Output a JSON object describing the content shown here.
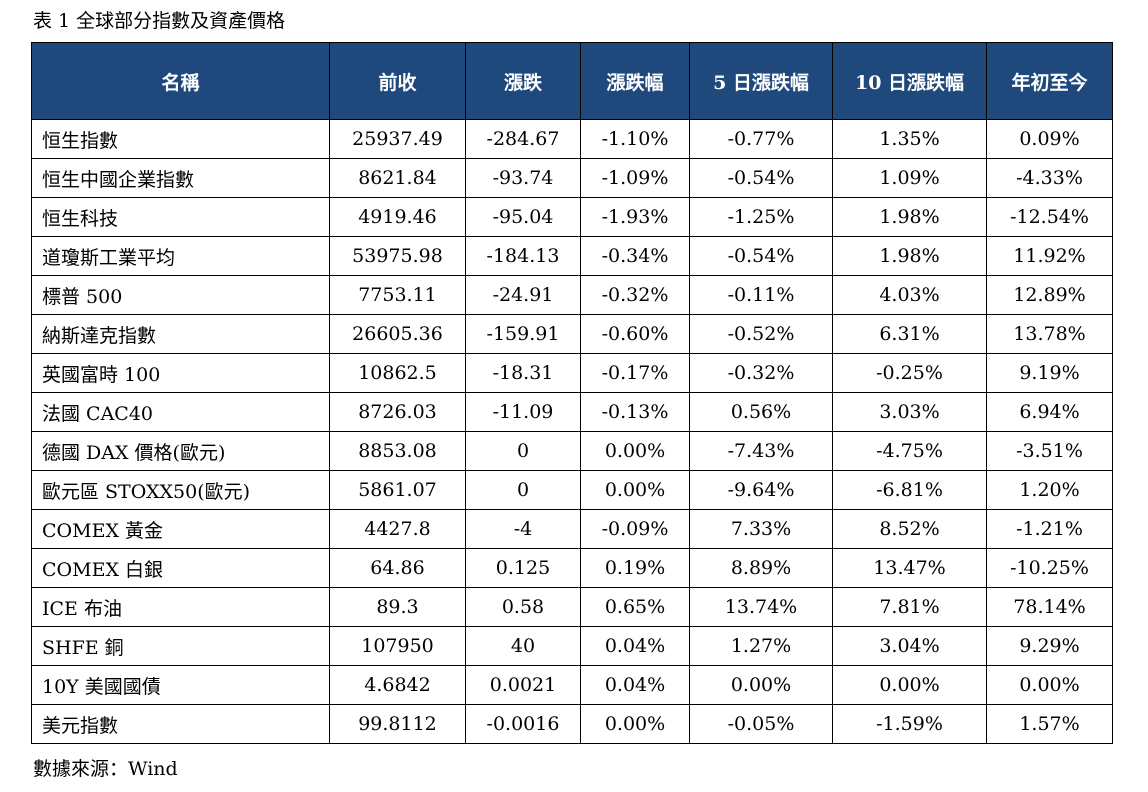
{
  "caption": "表 1 全球部分指數及資產價格",
  "source": "數據來源：Wind",
  "table": {
    "headers": [
      "名稱",
      "前收",
      "漲跌",
      "漲跌幅",
      "5 日漲跌幅",
      "10 日漲跌幅",
      "年初至今"
    ],
    "rows": [
      [
        "恒生指數",
        "25937.49",
        "-284.67",
        "-1.10%",
        "-0.77%",
        "1.35%",
        "0.09%"
      ],
      [
        "恒生中國企業指數",
        "8621.84",
        "-93.74",
        "-1.09%",
        "-0.54%",
        "1.09%",
        "-4.33%"
      ],
      [
        "恒生科技",
        "4919.46",
        "-95.04",
        "-1.93%",
        "-1.25%",
        "1.98%",
        "-12.54%"
      ],
      [
        "道瓊斯工業平均",
        "53975.98",
        "-184.13",
        "-0.34%",
        "-0.54%",
        "1.98%",
        "11.92%"
      ],
      [
        "標普 500",
        "7753.11",
        "-24.91",
        "-0.32%",
        "-0.11%",
        "4.03%",
        "12.89%"
      ],
      [
        "納斯達克指數",
        "26605.36",
        "-159.91",
        "-0.60%",
        "-0.52%",
        "6.31%",
        "13.78%"
      ],
      [
        "英國富時 100",
        "10862.5",
        "-18.31",
        "-0.17%",
        "-0.32%",
        "-0.25%",
        "9.19%"
      ],
      [
        "法國 CAC40",
        "8726.03",
        "-11.09",
        "-0.13%",
        "0.56%",
        "3.03%",
        "6.94%"
      ],
      [
        "德國 DAX 價格(歐元)",
        "8853.08",
        "0",
        "0.00%",
        "-7.43%",
        "-4.75%",
        "-3.51%"
      ],
      [
        "歐元區 STOXX50(歐元)",
        "5861.07",
        "0",
        "0.00%",
        "-9.64%",
        "-6.81%",
        "1.20%"
      ],
      [
        "COMEX 黃金",
        "4427.8",
        "-4",
        "-0.09%",
        "7.33%",
        "8.52%",
        "-1.21%"
      ],
      [
        "COMEX 白銀",
        "64.86",
        "0.125",
        "0.19%",
        "8.89%",
        "13.47%",
        "-10.25%"
      ],
      [
        "ICE 布油",
        "89.3",
        "0.58",
        "0.65%",
        "13.74%",
        "7.81%",
        "78.14%"
      ],
      [
        "SHFE 銅",
        "107950",
        "40",
        "0.04%",
        "1.27%",
        "3.04%",
        "9.29%"
      ],
      [
        "10Y  美國國債",
        "4.6842",
        "0.0021",
        "0.04%",
        "0.00%",
        "0.00%",
        "0.00%"
      ],
      [
        "美元指數",
        "99.8112",
        "-0.0016",
        "0.00%",
        "-0.05%",
        "-1.59%",
        "1.57%"
      ]
    ]
  }
}
